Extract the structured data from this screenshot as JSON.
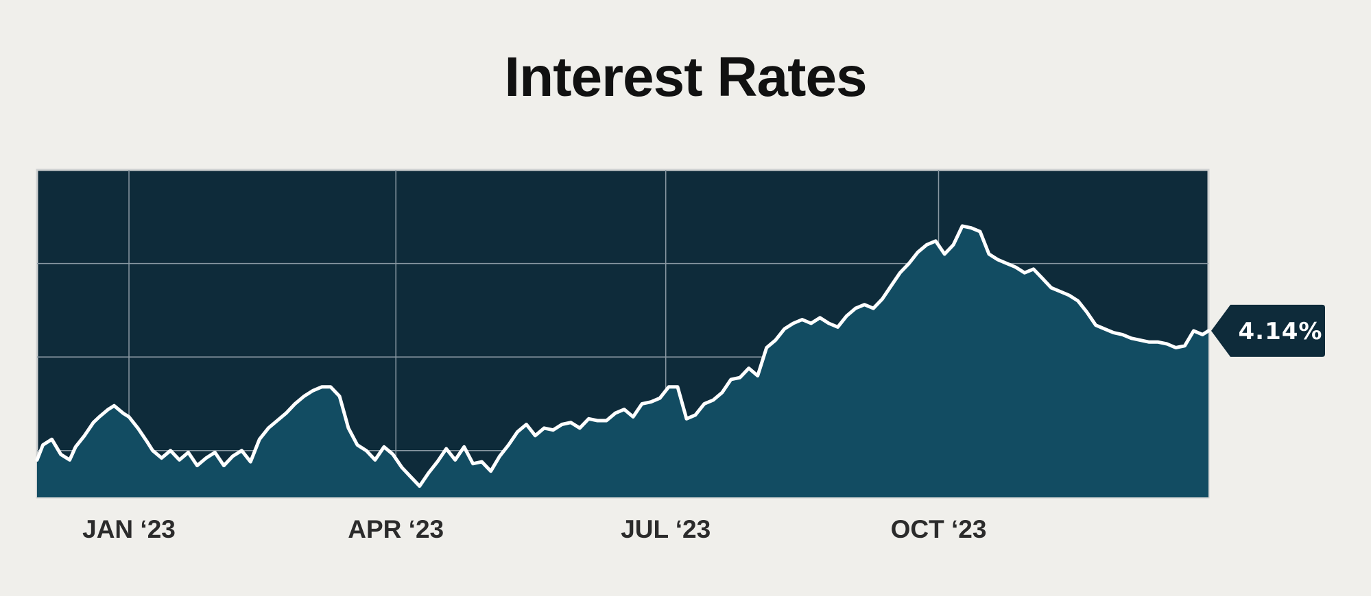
{
  "title": "Interest Rates",
  "chart_data": {
    "type": "area",
    "title": "Interest Rates",
    "xlabel": "",
    "ylabel": "",
    "x_tick_labels": [
      "JAN ‘23",
      "APR ‘23",
      "JUL ‘23",
      "OCT ‘23"
    ],
    "x_range": [
      "2022-12-01",
      "2023-12-31"
    ],
    "ylim": [
      3.25,
      5.0
    ],
    "grid": true,
    "last_value_label": "4.14%",
    "colors": {
      "background": "#f0efeb",
      "plot_background": "#0e2b3a",
      "area_fill": "#124c62",
      "line": "#ffffff",
      "grid": "#8a99a3",
      "callout": "#0e2b3a"
    },
    "series": [
      {
        "x": [
          "2022-12-01",
          "2022-12-03",
          "2022-12-06",
          "2022-12-09",
          "2022-12-12",
          "2022-12-14",
          "2022-12-17",
          "2022-12-20",
          "2022-12-22",
          "2022-12-25",
          "2022-12-27",
          "2022-12-30",
          "2023-01-01",
          "2023-01-04",
          "2023-01-07",
          "2023-01-09",
          "2023-01-12",
          "2023-01-15",
          "2023-01-18",
          "2023-01-21",
          "2023-01-24",
          "2023-01-27",
          "2023-01-30",
          "2023-02-02",
          "2023-02-05",
          "2023-02-08",
          "2023-02-11",
          "2023-02-14",
          "2023-02-17",
          "2023-02-20",
          "2023-02-23",
          "2023-02-26",
          "2023-03-01",
          "2023-03-04",
          "2023-03-07",
          "2023-03-10",
          "2023-03-13",
          "2023-03-16",
          "2023-03-19",
          "2023-03-22",
          "2023-03-25",
          "2023-03-28",
          "2023-03-31",
          "2023-04-03",
          "2023-04-06",
          "2023-04-09",
          "2023-04-12",
          "2023-04-15",
          "2023-04-18",
          "2023-04-21",
          "2023-04-24",
          "2023-04-27",
          "2023-04-30",
          "2023-05-03",
          "2023-05-06",
          "2023-05-09",
          "2023-05-12",
          "2023-05-15",
          "2023-05-18",
          "2023-05-21",
          "2023-05-24",
          "2023-05-27",
          "2023-05-30",
          "2023-06-02",
          "2023-06-05",
          "2023-06-08",
          "2023-06-11",
          "2023-06-14",
          "2023-06-17",
          "2023-06-20",
          "2023-06-23",
          "2023-06-26",
          "2023-06-29",
          "2023-07-02",
          "2023-07-05",
          "2023-07-08",
          "2023-07-11",
          "2023-07-14",
          "2023-07-17",
          "2023-07-20",
          "2023-07-23",
          "2023-07-26",
          "2023-07-29",
          "2023-08-01",
          "2023-08-04",
          "2023-08-07",
          "2023-08-10",
          "2023-08-13",
          "2023-08-16",
          "2023-08-19",
          "2023-08-22",
          "2023-08-25",
          "2023-08-28",
          "2023-08-31",
          "2023-09-03",
          "2023-09-06",
          "2023-09-09",
          "2023-09-12",
          "2023-09-15",
          "2023-09-18",
          "2023-09-21",
          "2023-09-24",
          "2023-09-27",
          "2023-09-30",
          "2023-10-03",
          "2023-10-06",
          "2023-10-09",
          "2023-10-12",
          "2023-10-15",
          "2023-10-18",
          "2023-10-21",
          "2023-10-24",
          "2023-10-27",
          "2023-10-30",
          "2023-11-02",
          "2023-11-05",
          "2023-11-08",
          "2023-11-11",
          "2023-11-14",
          "2023-11-17",
          "2023-11-20",
          "2023-11-23",
          "2023-11-26",
          "2023-11-29",
          "2023-12-02",
          "2023-12-05",
          "2023-12-08",
          "2023-12-11",
          "2023-12-14",
          "2023-12-17",
          "2023-12-20",
          "2023-12-23",
          "2023-12-26",
          "2023-12-29",
          "2023-12-31"
        ],
        "y": [
          3.45,
          3.53,
          3.56,
          3.48,
          3.45,
          3.52,
          3.58,
          3.65,
          3.68,
          3.72,
          3.74,
          3.7,
          3.68,
          3.62,
          3.55,
          3.5,
          3.46,
          3.5,
          3.45,
          3.49,
          3.42,
          3.46,
          3.49,
          3.42,
          3.47,
          3.5,
          3.44,
          3.56,
          3.62,
          3.66,
          3.7,
          3.75,
          3.79,
          3.82,
          3.84,
          3.84,
          3.79,
          3.62,
          3.53,
          3.5,
          3.45,
          3.52,
          3.48,
          3.41,
          3.36,
          3.31,
          3.38,
          3.44,
          3.51,
          3.45,
          3.52,
          3.43,
          3.44,
          3.39,
          3.47,
          3.53,
          3.6,
          3.64,
          3.58,
          3.62,
          3.61,
          3.64,
          3.65,
          3.62,
          3.67,
          3.66,
          3.66,
          3.7,
          3.72,
          3.68,
          3.75,
          3.76,
          3.78,
          3.84,
          3.84,
          3.67,
          3.69,
          3.75,
          3.77,
          3.81,
          3.88,
          3.89,
          3.94,
          3.9,
          4.05,
          4.09,
          4.15,
          4.18,
          4.2,
          4.18,
          4.21,
          4.18,
          4.16,
          4.22,
          4.26,
          4.28,
          4.26,
          4.31,
          4.38,
          4.45,
          4.5,
          4.56,
          4.6,
          4.62,
          4.55,
          4.6,
          4.7,
          4.69,
          4.67,
          4.55,
          4.52,
          4.5,
          4.48,
          4.45,
          4.47,
          4.42,
          4.37,
          4.35,
          4.33,
          4.3,
          4.24,
          4.17,
          4.15,
          4.13,
          4.12,
          4.1,
          4.09,
          4.08,
          4.08,
          4.07,
          4.05,
          4.06,
          4.14,
          4.12,
          4.14
        ]
      }
    ]
  }
}
